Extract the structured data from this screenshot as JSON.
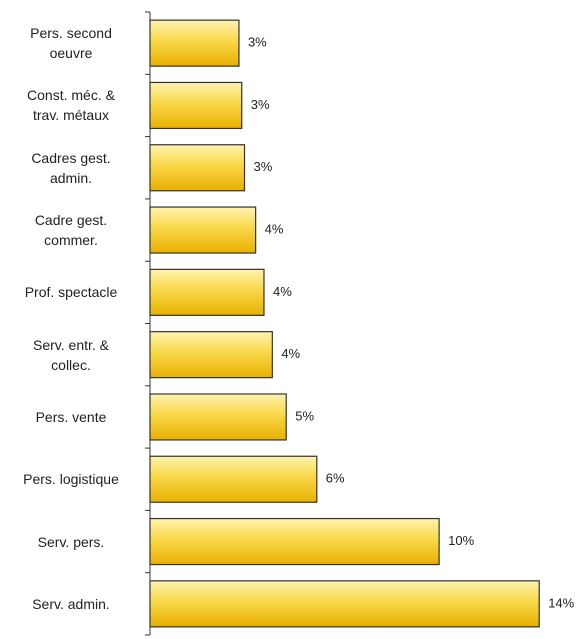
{
  "chart_data": {
    "type": "bar",
    "orientation": "horizontal",
    "categories": [
      "Pers. second\noeuvre",
      "Const. méc. &\ntrav. métaux",
      "Cadres gest.\nadmin.",
      "Cadre gest.\ncommer.",
      "Prof. spectacle",
      "Serv. entr. &\ncollec.",
      "Pers. vente",
      "Pers. logistique",
      "Serv. pers.",
      "Serv. admin."
    ],
    "values": [
      3.2,
      3.3,
      3.4,
      3.8,
      4.1,
      4.4,
      4.9,
      6.0,
      10.4,
      14.0
    ],
    "value_labels": [
      "3%",
      "3%",
      "3%",
      "4%",
      "4%",
      "4%",
      "5%",
      "6%",
      "10%",
      "14%"
    ],
    "color": "#f7c51c",
    "xlim": [
      0,
      15
    ]
  }
}
